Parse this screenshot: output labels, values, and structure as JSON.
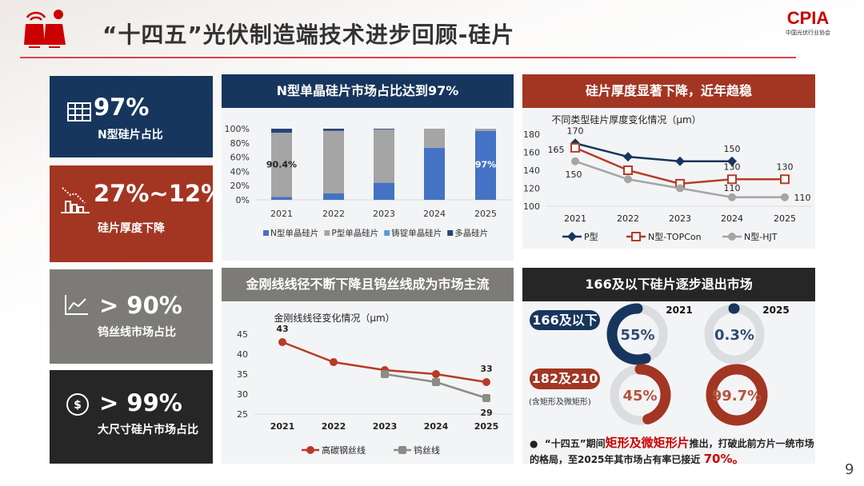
{
  "header": {
    "title": "“十四五”光伏制造端技术进步回顾-硅片",
    "logo_text": "CPIA",
    "logo_sub": "中国光伏行业协会",
    "page_number": "9"
  },
  "cards": [
    {
      "icon": "solar-panel-grid-icon",
      "value": "97%",
      "label": "N型硅片占比",
      "color": "#17365d"
    },
    {
      "icon": "declining-bar-chart-icon",
      "value": "27%~12%",
      "label": "硅片厚度下降",
      "color": "#a33523"
    },
    {
      "icon": "trend-line-icon",
      "value": "> 90%",
      "label": "钨丝线市场占比",
      "color": "#7d7b77"
    },
    {
      "icon": "dollar-coin-icon",
      "value": "> 99%",
      "label": "大尺寸硅片市场占比",
      "color": "#262626"
    }
  ],
  "panels": {
    "share": {
      "title": "N型单晶硅片市场占比达到97%",
      "color": "#17365d"
    },
    "thickness": {
      "title": "硅片厚度显著下降，近年趋稳",
      "color": "#a33523"
    },
    "wire": {
      "title": "金刚线线径不断下降且钨丝线成为市场主流",
      "color": "#7d7b77"
    },
    "size": {
      "title": "166及以下硅片逐步退出市场",
      "color": "#262626"
    }
  },
  "chart_data": [
    {
      "type": "bar",
      "stacked": true,
      "categories": [
        "2021",
        "2022",
        "2023",
        "2024",
        "2025"
      ],
      "yticks": [
        "0%",
        "20%",
        "40%",
        "60%",
        "80%",
        "100%"
      ],
      "ylim": [
        0,
        100
      ],
      "series": [
        {
          "name": "N型单晶硅片",
          "color": "#4472c4",
          "values": [
            4,
            9,
            24,
            73,
            97
          ]
        },
        {
          "name": "P型单晶硅片",
          "color": "#a5a5a5",
          "values": [
            90.4,
            88,
            75,
            27,
            3
          ]
        },
        {
          "name": "铸锭单晶硅片",
          "color": "#5b9bd5",
          "values": [
            0,
            0,
            0,
            0,
            0
          ]
        },
        {
          "name": "多晶硅片",
          "color": "#264478",
          "values": [
            5.6,
            3,
            1,
            0,
            0
          ]
        }
      ],
      "data_labels": [
        {
          "category": "2021",
          "text": "90.4%"
        },
        {
          "category": "2025",
          "text": "97%"
        }
      ],
      "legend": "bottom"
    },
    {
      "type": "line",
      "title": "不同类型硅片厚度变化情况（μm）",
      "categories": [
        "2021",
        "2022",
        "2023",
        "2024",
        "2025"
      ],
      "yticks": [
        "100",
        "120",
        "140",
        "160",
        "180"
      ],
      "ylim": [
        100,
        180
      ],
      "series": [
        {
          "name": "P型",
          "color": "#17365d",
          "marker": "diamond",
          "values": [
            170,
            155,
            150,
            150,
            null
          ],
          "labels": [
            "170",
            "",
            "",
            "150",
            ""
          ]
        },
        {
          "name": "N型-TOPCon",
          "color": "#b83b25",
          "marker": "square-open",
          "values": [
            165,
            140,
            125,
            130,
            130
          ],
          "labels": [
            "165",
            "",
            "",
            "130",
            "130"
          ]
        },
        {
          "name": "N型-HJT",
          "color": "#a5a5a5",
          "marker": "circle",
          "values": [
            150,
            130,
            120,
            110,
            110
          ],
          "labels": [
            "150",
            "",
            "",
            "110",
            "110"
          ]
        }
      ],
      "legend": "bottom"
    },
    {
      "type": "line",
      "title": "金刚线线径变化情况（μm）",
      "categories": [
        "2021",
        "2022",
        "2023",
        "2024",
        "2025"
      ],
      "yticks": [
        "25",
        "30",
        "35",
        "40",
        "45"
      ],
      "ylim": [
        25,
        45
      ],
      "series": [
        {
          "name": "高碳钢丝线",
          "color": "#b83b25",
          "marker": "circle",
          "values": [
            43,
            38,
            36,
            35,
            33
          ],
          "labels": [
            "43",
            "",
            "",
            "",
            "33"
          ]
        },
        {
          "name": "钨丝线",
          "color": "#8c8c86",
          "marker": "square",
          "values": [
            null,
            null,
            35,
            33,
            29
          ],
          "labels": [
            "",
            "",
            "",
            "",
            "29"
          ]
        }
      ],
      "legend": "bottom"
    },
    {
      "type": "pie",
      "variant": "donut",
      "years": [
        "2021",
        "2025"
      ],
      "rows": [
        {
          "label": "166及以下",
          "color": "#17365d",
          "values": [
            55,
            0.3
          ],
          "value_labels": [
            "55%",
            "0.3%"
          ]
        },
        {
          "label": "182及210",
          "sublabel": "(含矩形及微矩形)",
          "color": "#a33523",
          "values": [
            45,
            99.7
          ],
          "value_labels": [
            "45%",
            "99.7%"
          ]
        }
      ]
    }
  ],
  "note": {
    "bullet": "●",
    "part1": "“十四五”期间",
    "highlight1": "矩形及微矩形片",
    "part2": "推出，打破此前方片一统市场的格局，至2025年其市场占有率已接近",
    "highlight2": "70%。"
  }
}
